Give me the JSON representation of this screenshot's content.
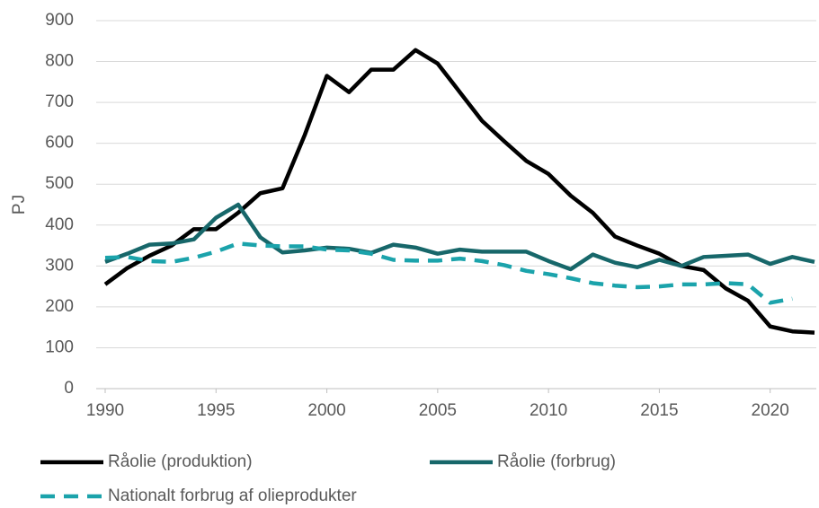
{
  "chart_data": {
    "type": "line",
    "y_label": "PJ",
    "x": [
      1990,
      1991,
      1992,
      1993,
      1994,
      1995,
      1996,
      1997,
      1998,
      1999,
      2000,
      2001,
      2002,
      2003,
      2004,
      2005,
      2006,
      2007,
      2008,
      2009,
      2010,
      2011,
      2012,
      2013,
      2014,
      2015,
      2016,
      2017,
      2018,
      2019,
      2020,
      2021,
      2022
    ],
    "series": [
      {
        "name": "Råolie (produktion)",
        "color": "#000000",
        "dashed": false,
        "values": [
          255,
          295,
          325,
          350,
          390,
          390,
          430,
          478,
          490,
          620,
          765,
          725,
          780,
          780,
          828,
          795,
          725,
          655,
          605,
          557,
          525,
          472,
          430,
          372,
          350,
          330,
          300,
          290,
          245,
          215,
          152,
          140,
          137
        ]
      },
      {
        "name": "Råolie (forbrug)",
        "color": "#17676a",
        "dashed": false,
        "values": [
          310,
          330,
          352,
          355,
          365,
          418,
          450,
          370,
          333,
          338,
          345,
          342,
          332,
          352,
          345,
          330,
          340,
          335,
          335,
          335,
          312,
          292,
          328,
          308,
          297,
          315,
          300,
          322,
          325,
          328,
          305,
          322,
          310
        ]
      },
      {
        "name": "Nationalt forbrug af olieprodukter",
        "color": "#1ba3ab",
        "dashed": true,
        "values": [
          320,
          322,
          312,
          310,
          320,
          335,
          355,
          350,
          348,
          348,
          340,
          338,
          330,
          315,
          313,
          313,
          318,
          312,
          302,
          288,
          280,
          270,
          258,
          252,
          248,
          250,
          255,
          255,
          258,
          255,
          210,
          220,
          null
        ]
      }
    ],
    "xlim": [
      1990,
      2022
    ],
    "xticks": [
      1990,
      1995,
      2000,
      2005,
      2010,
      2015,
      2020
    ],
    "ylim": [
      0,
      900
    ],
    "yticks": [
      0,
      100,
      200,
      300,
      400,
      500,
      600,
      700,
      800,
      900
    ],
    "grid": true,
    "legend": "bottom"
  }
}
